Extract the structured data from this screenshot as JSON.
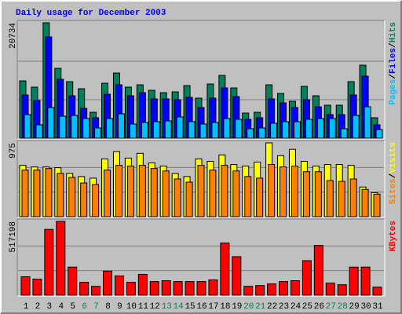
{
  "title": "Daily usage for December 2003",
  "chart_data": [
    {
      "type": "bar",
      "ylim": [
        0,
        20734
      ],
      "yticks": [
        20734
      ],
      "legend_separator": "/",
      "series": [
        {
          "name": "Hits",
          "color": "#00805c",
          "values": [
            10293,
            9165,
            20734,
            12549,
            10152,
            8883,
            4653,
            9870,
            11703,
            9165,
            9588,
            8601,
            8178,
            8319,
            9447,
            7191,
            9729,
            11280,
            9024,
            4512,
            4653,
            9588,
            8037,
            6627,
            9306,
            7614,
            5922,
            5922,
            10152,
            13113,
            3666
          ]
        },
        {
          "name": "Files",
          "color": "#0000ff",
          "values": [
            7755,
            6768,
            18189,
            10575,
            7614,
            5358,
            3666,
            7896,
            9588,
            7614,
            8178,
            7050,
            7050,
            6909,
            7332,
            5499,
            7191,
            9024,
            7473,
            3384,
            3666,
            7050,
            6345,
            5499,
            6909,
            5640,
            4230,
            4230,
            7755,
            11139,
            2397
          ]
        },
        {
          "name": "Pages",
          "color": "#00c0ff",
          "values": [
            4230,
            2397,
            5499,
            3948,
            4089,
            3525,
            1833,
            3525,
            4371,
            2538,
            2820,
            2961,
            3102,
            3807,
            2961,
            2538,
            2820,
            3525,
            3384,
            1692,
            1833,
            2679,
            2961,
            2961,
            3384,
            3525,
            3525,
            1692,
            4089,
            5640,
            1551
          ]
        }
      ]
    },
    {
      "type": "bar",
      "ylim": [
        0,
        975
      ],
      "yticks": [
        975
      ],
      "legend_separator": "/",
      "series": [
        {
          "name": "Visits",
          "color": "#ffff00",
          "values": [
            678,
            657,
            657,
            647,
            572,
            530,
            509,
            763,
            859,
            774,
            837,
            710,
            668,
            572,
            530,
            763,
            731,
            816,
            689,
            668,
            721,
            975,
            806,
            890,
            731,
            668,
            689,
            689,
            678,
            392,
            318
          ]
        },
        {
          "name": "Sites",
          "color": "#ff8000",
          "values": [
            615,
            615,
            636,
            572,
            519,
            445,
            424,
            615,
            678,
            668,
            678,
            636,
            604,
            498,
            456,
            678,
            615,
            678,
            604,
            530,
            509,
            689,
            657,
            668,
            594,
            594,
            477,
            466,
            498,
            360,
            297
          ]
        }
      ]
    },
    {
      "type": "bar",
      "ylim": [
        0,
        517198
      ],
      "yticks": [
        517198
      ],
      "categories": [
        "1",
        "2",
        "3",
        "4",
        "5",
        "6",
        "7",
        "8",
        "9",
        "10",
        "11",
        "12",
        "13",
        "14",
        "15",
        "16",
        "17",
        "18",
        "19",
        "20",
        "21",
        "22",
        "23",
        "24",
        "25",
        "26",
        "27",
        "28",
        "29",
        "30",
        "31"
      ],
      "highlighted_categories": [
        "6",
        "7",
        "13",
        "14",
        "20",
        "21",
        "27",
        "28"
      ],
      "highlight_color": "#00805c",
      "series": [
        {
          "name": "KBytes",
          "color": "#ff0000",
          "values": [
            129306,
            112440,
            461004,
            517198,
            196770,
            89952,
            61842,
            168660,
            134928,
            89952,
            146172,
            95574,
            101196,
            95574,
            95574,
            95574,
            106818,
            365430,
            269856,
            61842,
            67464,
            78708,
            95574,
            101196,
            241746,
            348564,
            84330,
            73086,
            196770,
            196770,
            56220
          ]
        }
      ]
    }
  ]
}
